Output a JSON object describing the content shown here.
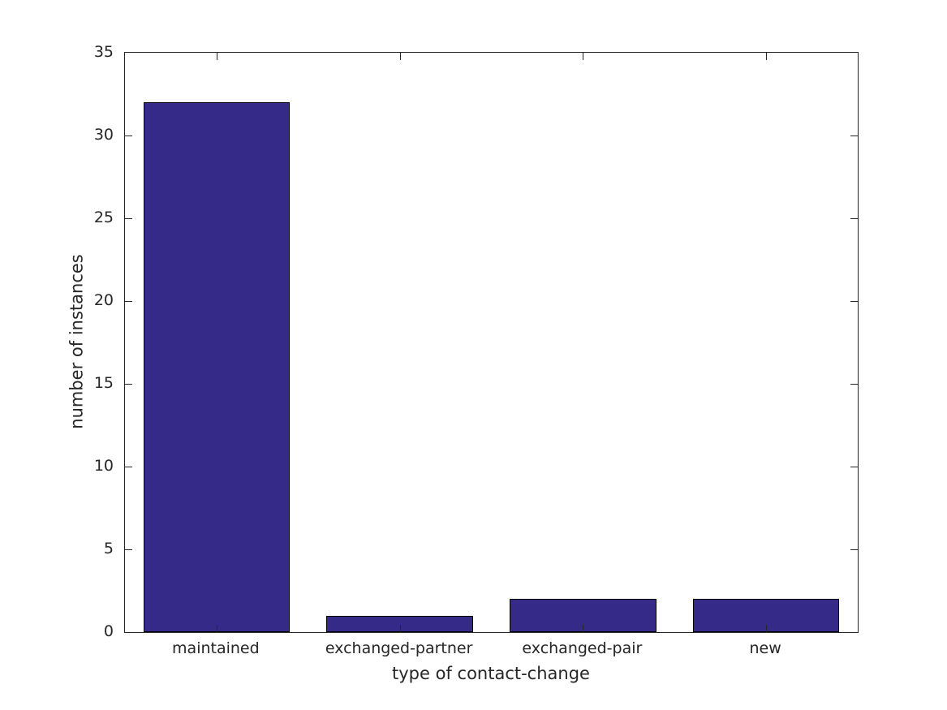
{
  "chart_data": {
    "type": "bar",
    "categories": [
      "maintained",
      "exchanged-partner",
      "exchanged-pair",
      "new"
    ],
    "values": [
      32,
      1,
      2,
      2
    ],
    "title": "",
    "xlabel": "type of contact-change",
    "ylabel": "number of instances",
    "ylim": [
      0,
      35
    ],
    "yticks": [
      0,
      5,
      10,
      15,
      20,
      25,
      30,
      35
    ],
    "bar_relative_width": 0.8,
    "bar_color": "#352a87",
    "bar_edge_color": "#000000",
    "axis_color": "#262626",
    "text_color": "#262626",
    "background": "#ffffff",
    "grid": false,
    "legend": null,
    "box": true,
    "tick_direction": "in"
  }
}
